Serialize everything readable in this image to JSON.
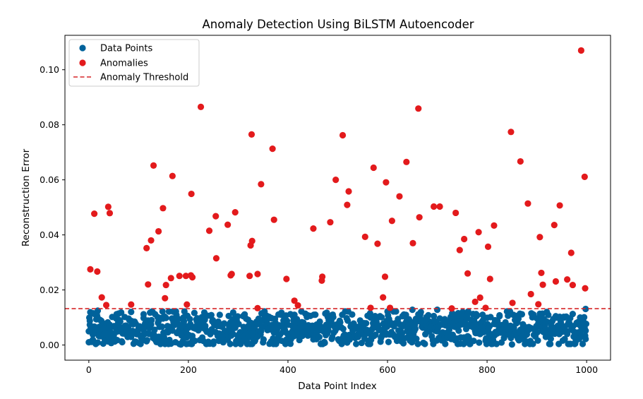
{
  "chart_data": {
    "type": "scatter",
    "title": "Anomaly Detection Using BiLSTM Autoencoder",
    "xlabel": "Data Point Index",
    "ylabel": "Reconstruction Error",
    "xlim": [
      -48,
      1048
    ],
    "ylim": [
      -0.0055,
      0.1125
    ],
    "x_ticks": [
      0,
      200,
      400,
      600,
      800,
      1000
    ],
    "x_tick_labels": [
      "0",
      "200",
      "400",
      "600",
      "800",
      "1000"
    ],
    "y_ticks": [
      0.0,
      0.02,
      0.04,
      0.06,
      0.08,
      0.1
    ],
    "y_tick_labels": [
      "0.00",
      "0.02",
      "0.04",
      "0.06",
      "0.08",
      "0.10"
    ],
    "grid": false,
    "legend_position": "top-left",
    "threshold": {
      "name": "Anomaly Threshold",
      "value": 0.0132,
      "color": "#d62728",
      "style": "dashed"
    },
    "series": [
      {
        "name": "Data Points",
        "color": "#00629b",
        "count": 1000,
        "points": [
          [
            0,
            0.001
          ],
          [
            2,
            0.0088
          ],
          [
            4,
            0.0056
          ],
          [
            8,
            0.0019
          ],
          [
            12,
            0.0112
          ],
          [
            14,
            0.0055
          ],
          [
            18,
            0.0125
          ],
          [
            20,
            0.0038
          ],
          [
            25,
            0.0088
          ],
          [
            30,
            0.0061
          ],
          [
            45,
            0.0007
          ],
          [
            52,
            0.0013
          ],
          [
            85,
            0.012
          ],
          [
            110,
            0.0098
          ],
          [
            150,
            0.0008
          ],
          [
            185,
            0.0002
          ],
          [
            190,
            0.01
          ],
          [
            232,
            0.0118
          ],
          [
            290,
            0.0118
          ],
          [
            310,
            0.0105
          ],
          [
            405,
            0.0112
          ],
          [
            410,
            0.0105
          ],
          [
            440,
            0.0108
          ],
          [
            565,
            0.0115
          ],
          [
            575,
            0.0105
          ],
          [
            650,
            0.0128
          ],
          [
            700,
            0.0128
          ],
          [
            760,
            0.0108
          ],
          [
            780,
            0.0108
          ],
          [
            825,
            0.0108
          ],
          [
            850,
            0.0002
          ],
          [
            920,
            0.012
          ],
          [
            955,
            0.01
          ],
          [
            998,
            0.0131
          ],
          [
            998,
            0.0022
          ]
        ]
      },
      {
        "name": "Anomalies",
        "color": "#e31a1c",
        "points": [
          [
            3,
            0.0275
          ],
          [
            11,
            0.0477
          ],
          [
            17,
            0.0267
          ],
          [
            26,
            0.0173
          ],
          [
            35,
            0.0145
          ],
          [
            39,
            0.0502
          ],
          [
            42,
            0.0479
          ],
          [
            85,
            0.0147
          ],
          [
            116,
            0.0352
          ],
          [
            119,
            0.022
          ],
          [
            125,
            0.038
          ],
          [
            130,
            0.0652
          ],
          [
            140,
            0.0413
          ],
          [
            149,
            0.0497
          ],
          [
            153,
            0.017
          ],
          [
            155,
            0.0218
          ],
          [
            165,
            0.0243
          ],
          [
            168,
            0.0614
          ],
          [
            182,
            0.0251
          ],
          [
            195,
            0.0251
          ],
          [
            197,
            0.0147
          ],
          [
            205,
            0.0253
          ],
          [
            206,
            0.0549
          ],
          [
            208,
            0.0246
          ],
          [
            225,
            0.0865
          ],
          [
            242,
            0.0415
          ],
          [
            255,
            0.0468
          ],
          [
            256,
            0.0315
          ],
          [
            279,
            0.0437
          ],
          [
            285,
            0.0253
          ],
          [
            287,
            0.0258
          ],
          [
            294,
            0.0482
          ],
          [
            323,
            0.0251
          ],
          [
            325,
            0.0362
          ],
          [
            327,
            0.0765
          ],
          [
            328,
            0.0378
          ],
          [
            339,
            0.0134
          ],
          [
            339,
            0.0258
          ],
          [
            346,
            0.0584
          ],
          [
            369,
            0.0713
          ],
          [
            372,
            0.0455
          ],
          [
            397,
            0.024
          ],
          [
            413,
            0.0161
          ],
          [
            420,
            0.0144
          ],
          [
            451,
            0.0423
          ],
          [
            468,
            0.0234
          ],
          [
            469,
            0.0248
          ],
          [
            485,
            0.0446
          ],
          [
            496,
            0.06
          ],
          [
            510,
            0.0762
          ],
          [
            519,
            0.0509
          ],
          [
            522,
            0.0558
          ],
          [
            555,
            0.0393
          ],
          [
            566,
            0.0135
          ],
          [
            572,
            0.0644
          ],
          [
            580,
            0.0368
          ],
          [
            591,
            0.0173
          ],
          [
            595,
            0.0248
          ],
          [
            597,
            0.0591
          ],
          [
            605,
            0.0135
          ],
          [
            609,
            0.0451
          ],
          [
            624,
            0.054
          ],
          [
            638,
            0.0665
          ],
          [
            651,
            0.037
          ],
          [
            662,
            0.0859
          ],
          [
            664,
            0.0464
          ],
          [
            693,
            0.0503
          ],
          [
            705,
            0.0503
          ],
          [
            729,
            0.0133
          ],
          [
            737,
            0.048
          ],
          [
            745,
            0.0345
          ],
          [
            754,
            0.0385
          ],
          [
            761,
            0.026
          ],
          [
            776,
            0.0157
          ],
          [
            783,
            0.041
          ],
          [
            786,
            0.0172
          ],
          [
            797,
            0.0135
          ],
          [
            802,
            0.0357
          ],
          [
            806,
            0.024
          ],
          [
            814,
            0.0434
          ],
          [
            848,
            0.0774
          ],
          [
            851,
            0.0153
          ],
          [
            867,
            0.0667
          ],
          [
            882,
            0.0514
          ],
          [
            888,
            0.0185
          ],
          [
            903,
            0.0148
          ],
          [
            906,
            0.0392
          ],
          [
            909,
            0.0262
          ],
          [
            912,
            0.0219
          ],
          [
            935,
            0.0436
          ],
          [
            938,
            0.0231
          ],
          [
            946,
            0.0507
          ],
          [
            961,
            0.0238
          ],
          [
            969,
            0.0335
          ],
          [
            972,
            0.0218
          ],
          [
            989,
            0.107
          ],
          [
            996,
            0.0611
          ],
          [
            997,
            0.0206
          ]
        ]
      }
    ]
  }
}
